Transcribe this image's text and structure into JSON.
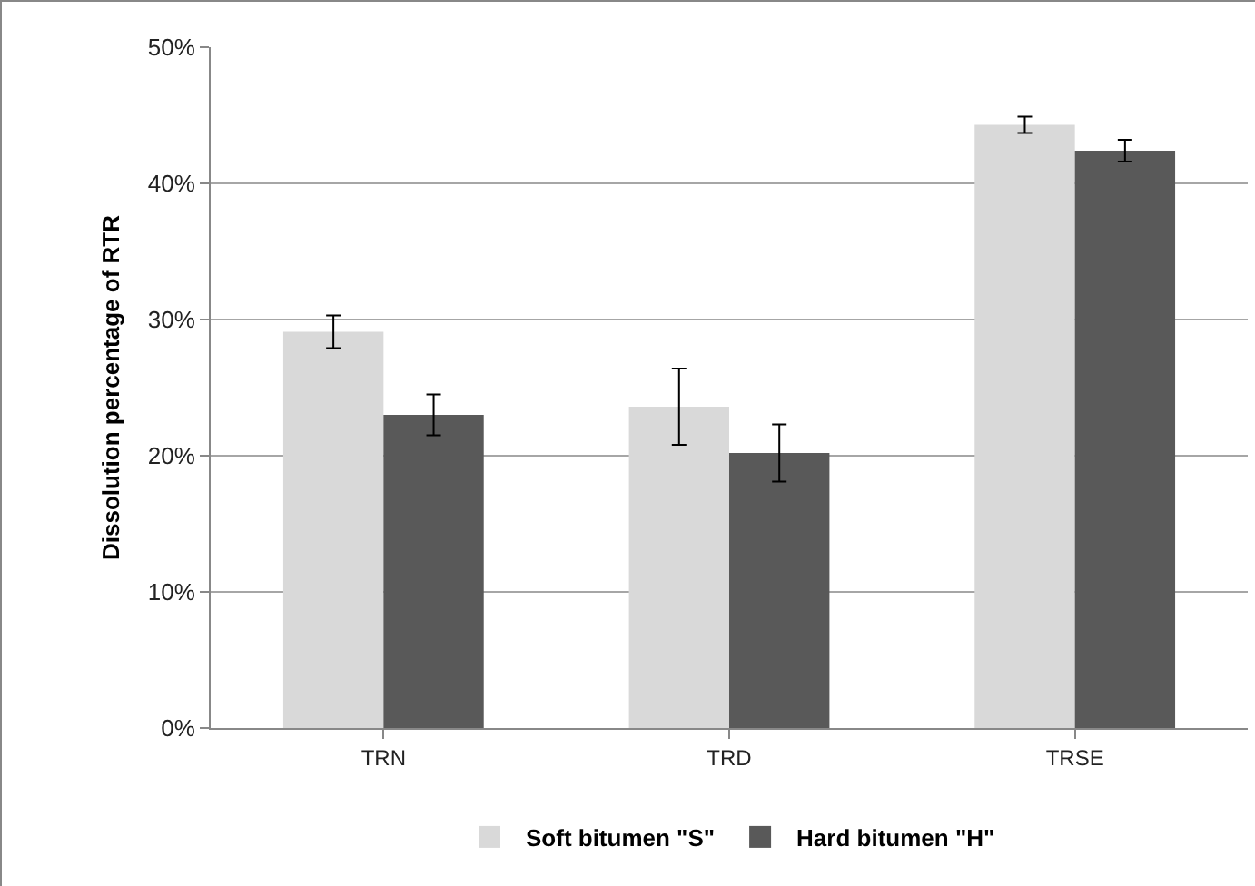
{
  "chart_data": {
    "type": "bar",
    "ylabel": "Dissolution percentage of RTR",
    "categories": [
      "TRN",
      "TRD",
      "TRSE"
    ],
    "series": [
      {
        "name": "Soft bitumen \"S\"",
        "color": "#d9d9d9",
        "values": [
          29.1,
          23.6,
          44.3
        ],
        "errors": [
          1.2,
          2.8,
          0.6
        ]
      },
      {
        "name": "Hard bitumen \"H\"",
        "color": "#595959",
        "values": [
          23.0,
          20.2,
          42.4
        ],
        "errors": [
          1.5,
          2.1,
          0.8
        ]
      }
    ],
    "ylim": [
      0,
      50
    ],
    "yticks": [
      {
        "value": 0,
        "label": "0%"
      },
      {
        "value": 10,
        "label": "10%"
      },
      {
        "value": 20,
        "label": "20%"
      },
      {
        "value": 30,
        "label": "30%"
      },
      {
        "value": 40,
        "label": "40%"
      },
      {
        "value": 50,
        "label": "50%"
      }
    ],
    "grid": "y",
    "legend": "bottom"
  }
}
